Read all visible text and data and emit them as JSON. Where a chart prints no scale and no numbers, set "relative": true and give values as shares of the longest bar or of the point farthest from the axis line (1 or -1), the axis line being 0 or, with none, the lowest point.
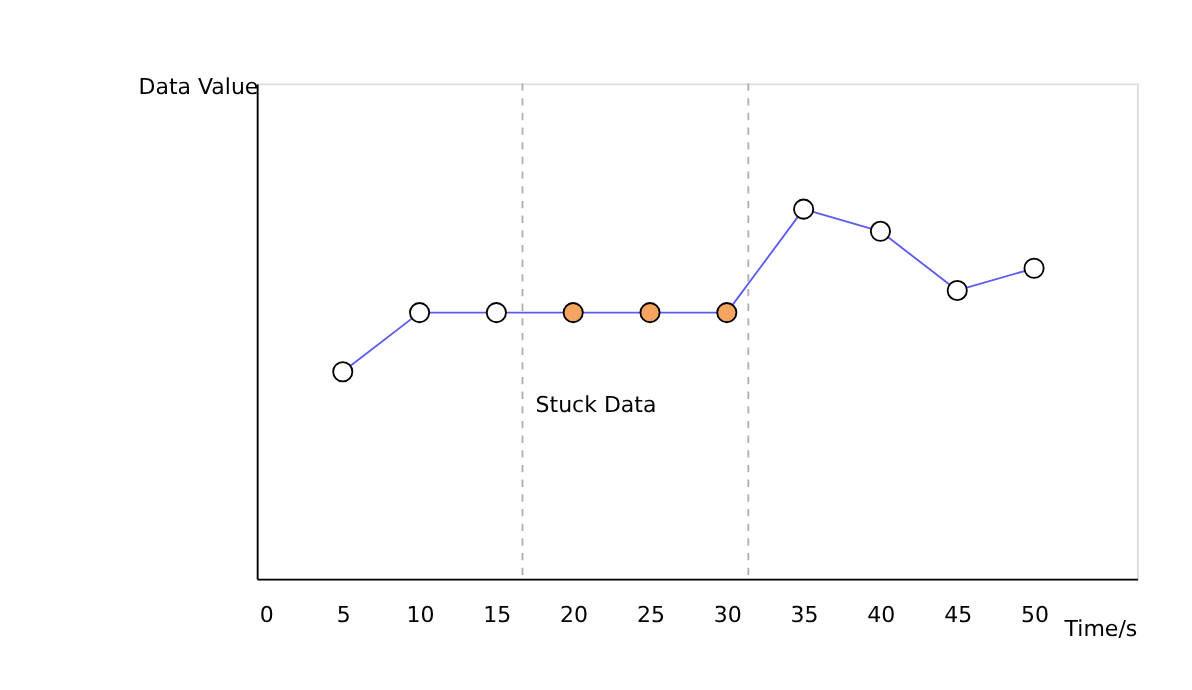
{
  "chart_data": {
    "type": "line",
    "relative": true,
    "xlabel": "Time/s",
    "ylabel": "Data Value",
    "x": [
      5,
      10,
      15,
      20,
      25,
      30,
      35,
      40,
      45,
      50
    ],
    "series": [
      {
        "color": "#5b5bf0",
        "values": [
          0.56,
          0.72,
          0.72,
          0.72,
          0.72,
          0.72,
          1,
          0.94,
          0.78,
          0.84
        ],
        "colors": [
          "#ffffff",
          "#ffffff",
          "#ffffff",
          "#f5a55f",
          "#f5a55f",
          "#f5a55f",
          "#ffffff",
          "#ffffff",
          "#ffffff",
          "#ffffff"
        ]
      }
    ],
    "xlim": [
      -0.6,
      56.7
    ],
    "xticks": [
      0,
      5,
      10,
      15,
      20,
      25,
      30,
      35,
      40,
      45,
      50
    ],
    "marker": "circle",
    "grid": false,
    "ref_lines": [
      {
        "axis": "x",
        "value": 16.7,
        "color": "#b0b0b0",
        "line_style": "dashed"
      },
      {
        "axis": "x",
        "value": 31.4,
        "color": "#b0b0b0",
        "line_style": "dashed"
      }
    ],
    "annotations": [
      "Stuck Data"
    ]
  }
}
